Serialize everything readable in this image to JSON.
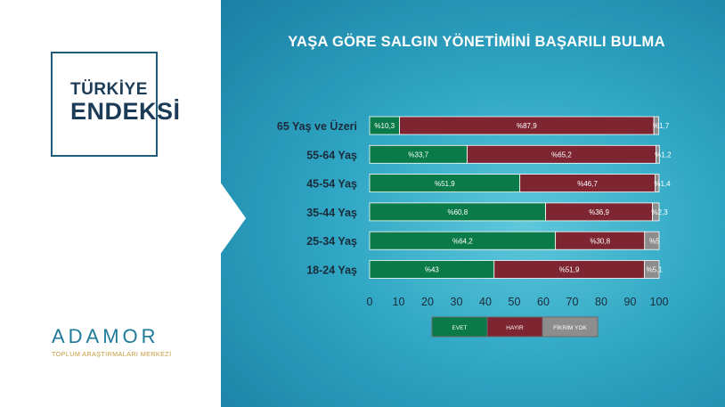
{
  "brand_panel": {
    "endeks_line1": "TÜRKİYE",
    "endeks_line2": "ENDEKSİ",
    "logo_name": "ADAMOR",
    "logo_subtitle": "TOPLUM ARAŞTIRMALARI MERKEZİ"
  },
  "colors": {
    "evet": "#0a7a48",
    "hayir": "#7d2530",
    "fikrim_yok": "#8d8d8d",
    "background": "#2fa6c3"
  },
  "chart_data": {
    "type": "bar",
    "orientation": "horizontal",
    "stacked": true,
    "title": "YAŞA GÖRE SALGIN YÖNETİMİNİ BAŞARILI BULMA",
    "categories": [
      "65 Yaş ve Üzeri",
      "55-64 Yaş",
      "45-54 Yaş",
      "35-44 Yaş",
      "25-34 Yaş",
      "18-24 Yaş"
    ],
    "series": [
      {
        "name": "EVET",
        "values": [
          10.3,
          33.7,
          51.9,
          60.8,
          64.2,
          43
        ],
        "labels": [
          "%10,3",
          "%33,7",
          "%51,9",
          "%60,8",
          "%64,2",
          "%43"
        ]
      },
      {
        "name": "HAYIR",
        "values": [
          87.9,
          65.2,
          46.7,
          36.9,
          30.8,
          51.9
        ],
        "labels": [
          "%87,9",
          "%65,2",
          "%46,7",
          "%36,9",
          "%30,8",
          "%51,9"
        ]
      },
      {
        "name": "FİKRİM YOK",
        "values": [
          1.7,
          1.2,
          1.4,
          2.3,
          5,
          5.1
        ],
        "labels": [
          "%1,7",
          "%1,2",
          "%1,4",
          "%2,3",
          "%5",
          "%5,1"
        ]
      }
    ],
    "xlim": [
      0,
      100
    ],
    "xticks": [
      "0",
      "10",
      "20",
      "30",
      "40",
      "50",
      "60",
      "70",
      "80",
      "90",
      "100"
    ],
    "legend_position": "bottom",
    "grid": false
  }
}
